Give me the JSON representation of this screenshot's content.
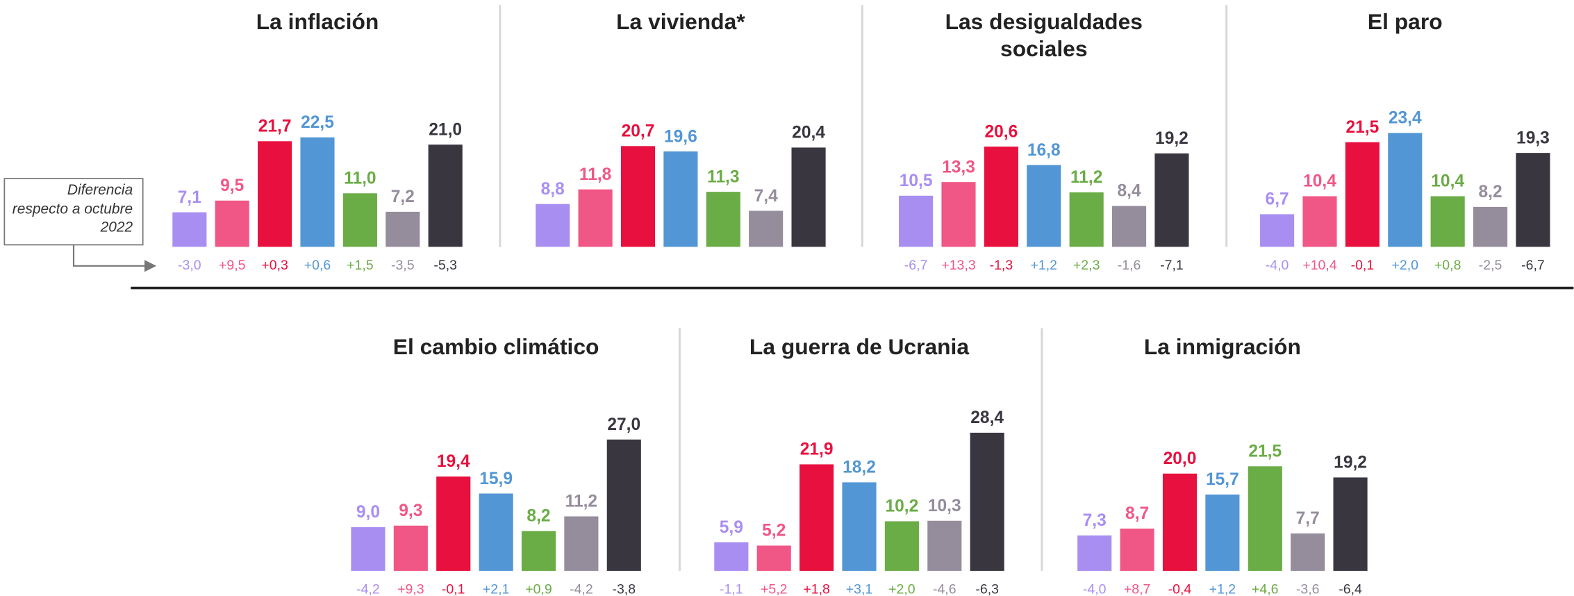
{
  "annotation": "Diferencia respecto a octubre 2022",
  "chart_data": [
    {
      "type": "bar",
      "title": "La inflación",
      "categories": [
        null,
        null,
        null,
        null,
        null,
        null,
        null
      ],
      "values": [
        7.1,
        9.5,
        21.7,
        22.5,
        11.0,
        7.2,
        21.0
      ],
      "value_labels": [
        "7,1",
        "9,5",
        "21,7",
        "22,5",
        "11,0",
        "7,2",
        "21,0"
      ],
      "changes": [
        -3.0,
        9.5,
        0.3,
        0.6,
        1.5,
        -3.5,
        -5.3
      ],
      "change_labels": [
        "-3,0",
        "+9,5",
        "+0,3",
        "+0,6",
        "+1,5",
        "-3,5",
        "-5,3"
      ],
      "colors": [
        "#a98ef2",
        "#f05686",
        "#e8103e",
        "#5296d5",
        "#6aac45",
        "#958c9c",
        "#3a3640"
      ]
    },
    {
      "type": "bar",
      "title": "La vivienda*",
      "categories": [
        null,
        null,
        null,
        null,
        null,
        null,
        null
      ],
      "values": [
        8.8,
        11.8,
        20.7,
        19.6,
        11.3,
        7.4,
        20.4
      ],
      "value_labels": [
        "8,8",
        "11,8",
        "20,7",
        "19,6",
        "11,3",
        "7,4",
        "20,4"
      ],
      "colors": [
        "#a98ef2",
        "#f05686",
        "#e8103e",
        "#5296d5",
        "#6aac45",
        "#958c9c",
        "#3a3640"
      ]
    },
    {
      "type": "bar",
      "title": "Las desigualdades sociales",
      "categories": [
        null,
        null,
        null,
        null,
        null,
        null,
        null
      ],
      "values": [
        10.5,
        13.3,
        20.6,
        16.8,
        11.2,
        8.4,
        19.2
      ],
      "value_labels": [
        "10,5",
        "13,3",
        "20,6",
        "16,8",
        "11,2",
        "8,4",
        "19,2"
      ],
      "changes": [
        -6.7,
        13.3,
        -1.3,
        1.2,
        2.3,
        -1.6,
        -7.1
      ],
      "change_labels": [
        "-6,7",
        "+13,3",
        "-1,3",
        "+1,2",
        "+2,3",
        "-1,6",
        "-7,1"
      ],
      "colors": [
        "#a98ef2",
        "#f05686",
        "#e8103e",
        "#5296d5",
        "#6aac45",
        "#958c9c",
        "#3a3640"
      ]
    },
    {
      "type": "bar",
      "title": "El paro",
      "categories": [
        null,
        null,
        null,
        null,
        null,
        null,
        null
      ],
      "values": [
        6.7,
        10.4,
        21.5,
        23.4,
        10.4,
        8.2,
        19.3
      ],
      "value_labels": [
        "6,7",
        "10,4",
        "21,5",
        "23,4",
        "10,4",
        "8,2",
        "19,3"
      ],
      "changes": [
        -4.0,
        10.4,
        -0.1,
        2.0,
        0.8,
        -2.5,
        -6.7
      ],
      "change_labels": [
        "-4,0",
        "+10,4",
        "-0,1",
        "+2,0",
        "+0,8",
        "-2,5",
        "-6,7"
      ],
      "colors": [
        "#a98ef2",
        "#f05686",
        "#e8103e",
        "#5296d5",
        "#6aac45",
        "#958c9c",
        "#3a3640"
      ]
    },
    {
      "type": "bar",
      "title": "El cambio climático",
      "categories": [
        null,
        null,
        null,
        null,
        null,
        null,
        null
      ],
      "values": [
        9.0,
        9.3,
        19.4,
        15.9,
        8.2,
        11.2,
        27.0
      ],
      "value_labels": [
        "9,0",
        "9,3",
        "19,4",
        "15,9",
        "8,2",
        "11,2",
        "27,0"
      ],
      "changes": [
        -4.2,
        9.3,
        -0.1,
        2.1,
        0.9,
        -4.2,
        -3.8
      ],
      "change_labels": [
        "-4,2",
        "+9,3",
        "-0,1",
        "+2,1",
        "+0,9",
        "-4,2",
        "-3,8"
      ],
      "colors": [
        "#a98ef2",
        "#f05686",
        "#e8103e",
        "#5296d5",
        "#6aac45",
        "#958c9c",
        "#3a3640"
      ]
    },
    {
      "type": "bar",
      "title": "La guerra de Ucrania",
      "categories": [
        null,
        null,
        null,
        null,
        null,
        null,
        null
      ],
      "values": [
        5.9,
        5.2,
        21.9,
        18.2,
        10.2,
        10.3,
        28.4
      ],
      "value_labels": [
        "5,9",
        "5,2",
        "21,9",
        "18,2",
        "10,2",
        "10,3",
        "28,4"
      ],
      "changes": [
        -1.1,
        5.2,
        1.8,
        3.1,
        2.0,
        -4.6,
        -6.3
      ],
      "change_labels": [
        "-1,1",
        "+5,2",
        "+1,8",
        "+3,1",
        "+2,0",
        "-4,6",
        "-6,3"
      ],
      "colors": [
        "#a98ef2",
        "#f05686",
        "#e8103e",
        "#5296d5",
        "#6aac45",
        "#958c9c",
        "#3a3640"
      ]
    },
    {
      "type": "bar",
      "title": "La inmigración",
      "categories": [
        null,
        null,
        null,
        null,
        null,
        null,
        null
      ],
      "values": [
        7.3,
        8.7,
        20.0,
        15.7,
        21.5,
        7.7,
        19.2
      ],
      "value_labels": [
        "7,3",
        "8,7",
        "20,0",
        "15,7",
        "21,5",
        "7,7",
        "19,2"
      ],
      "changes": [
        -4.0,
        8.7,
        -0.4,
        1.2,
        4.6,
        -3.6,
        -6.4
      ],
      "change_labels": [
        "-4,0",
        "+8,7",
        "-0,4",
        "+1,2",
        "+4,6",
        "-3,6",
        "-6,4"
      ],
      "colors": [
        "#a98ef2",
        "#f05686",
        "#e8103e",
        "#5296d5",
        "#6aac45",
        "#958c9c",
        "#3a3640"
      ]
    }
  ]
}
